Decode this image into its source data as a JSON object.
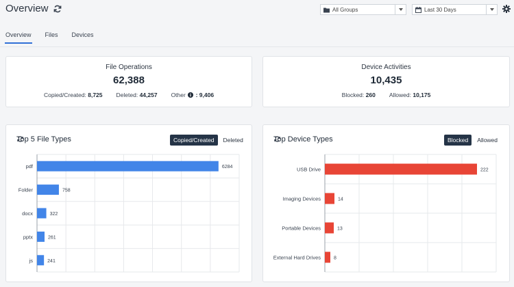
{
  "header": {
    "title": "Overview",
    "group_select": "All Groups",
    "date_select": "Last 30 Days"
  },
  "tabs": [
    {
      "label": "Overview",
      "active": true
    },
    {
      "label": "Files",
      "active": false
    },
    {
      "label": "Devices",
      "active": false
    }
  ],
  "file_operations": {
    "title": "File Operations",
    "total": "62,388",
    "items": [
      {
        "label": "Copied/Created:",
        "value": "8,725"
      },
      {
        "label": "Deleted:",
        "value": "44,257"
      },
      {
        "label": "Other",
        "value": ": 9,406"
      }
    ]
  },
  "device_activities": {
    "title": "Device Activities",
    "total": "10,435",
    "items": [
      {
        "label": "Blocked:",
        "value": "260"
      },
      {
        "label": "Allowed:",
        "value": "10,175"
      }
    ]
  },
  "file_types_panel": {
    "title": "Top 5 File Types",
    "toggle_active": "Copied/Created",
    "toggle_inactive": "Deleted"
  },
  "device_types_panel": {
    "title": "Top Device Types",
    "toggle_active": "Blocked",
    "toggle_inactive": "Allowed"
  },
  "colors": {
    "file_bar": "#4285e8",
    "device_bar": "#e84536",
    "toggle_active_bg": "#253447",
    "tab_underline": "#2f6fd6"
  },
  "chart_data": [
    {
      "type": "bar",
      "orientation": "horizontal",
      "title": "Top 5 File Types",
      "categories": [
        "pdf",
        "Folder",
        "docx",
        "pptx",
        "js"
      ],
      "values": [
        6284,
        758,
        322,
        261,
        241
      ],
      "xlim": [
        0,
        7000
      ],
      "grid": true
    },
    {
      "type": "bar",
      "orientation": "horizontal",
      "title": "Top Device Types",
      "categories": [
        "USB Drive",
        "Imaging Devices",
        "Portable Devices",
        "External Hard Drives"
      ],
      "values": [
        222,
        14,
        13,
        8
      ],
      "xlim": [
        0,
        250
      ],
      "grid": true
    }
  ]
}
